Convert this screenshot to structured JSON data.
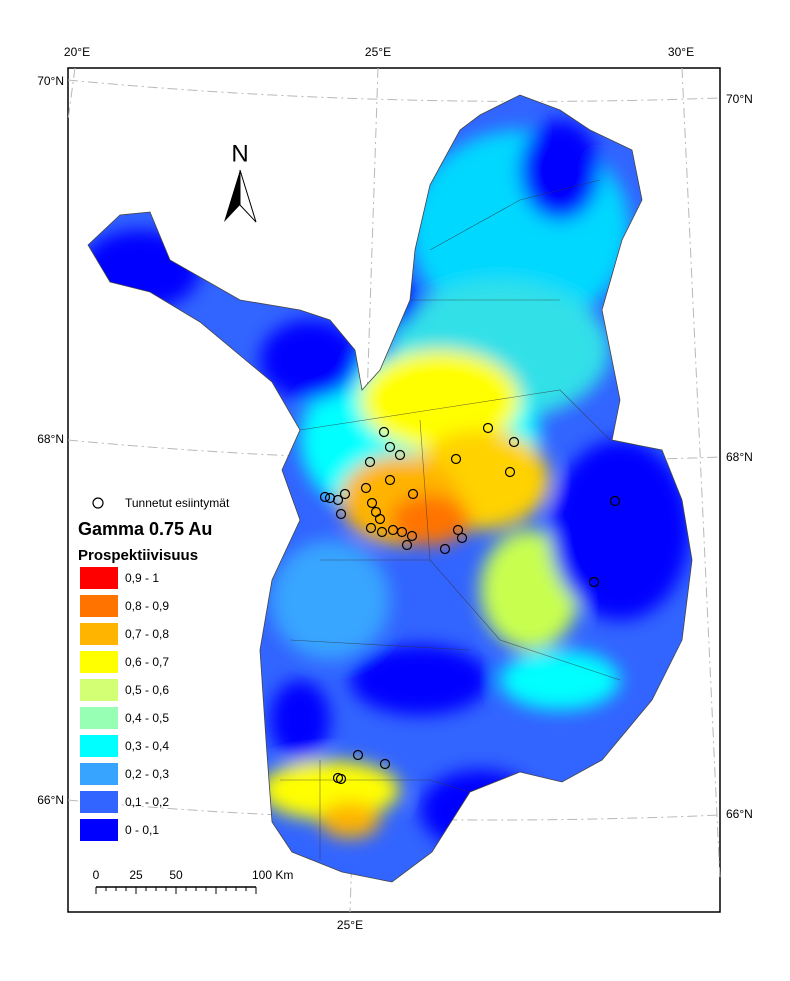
{
  "graticule": {
    "top": [
      "20°E",
      "25°E",
      "30°E"
    ],
    "left": [
      "70°N",
      "68°N",
      "66°N"
    ],
    "right": [
      "70°N",
      "68°N",
      "66°N"
    ],
    "bottom": [
      "25°E"
    ]
  },
  "north": "N",
  "legend": {
    "points": "Tunnetut esiintymät",
    "title": "Gamma 0.75 Au",
    "subtitle": "Prospektiivisuus",
    "classes": [
      {
        "label": "0,9 - 1",
        "color": "#ff0000"
      },
      {
        "label": "0,8 - 0,9",
        "color": "#ff7300"
      },
      {
        "label": "0,7 - 0,8",
        "color": "#ffb400"
      },
      {
        "label": "0,6 - 0,7",
        "color": "#ffff00"
      },
      {
        "label": "0,5 - 0,6",
        "color": "#d2ff73"
      },
      {
        "label": "0,4 - 0,5",
        "color": "#96ffb4"
      },
      {
        "label": "0,3 - 0,4",
        "color": "#00ffff"
      },
      {
        "label": "0,2 - 0,3",
        "color": "#37a5ff"
      },
      {
        "label": "0,1 - 0,2",
        "color": "#3264ff"
      },
      {
        "label": "0 - 0,1",
        "color": "#0000ff"
      }
    ]
  },
  "scale": {
    "labels": [
      "0",
      "25",
      "50",
      "100 Km"
    ]
  }
}
